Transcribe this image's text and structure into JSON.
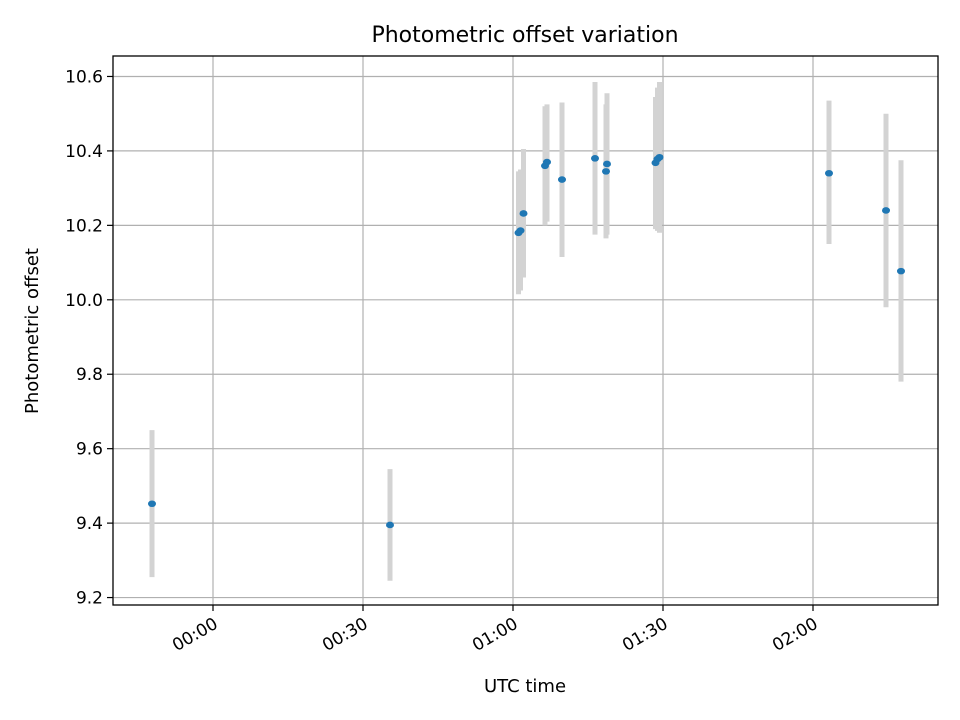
{
  "chart_data": {
    "type": "scatter",
    "title": "Photometric offset variation",
    "xlabel": "UTC time",
    "ylabel": "Photometric offset",
    "x_unit": "time (HH:MM)",
    "xlim": [
      "23:40",
      "02:25"
    ],
    "ylim": [
      9.18,
      10.655
    ],
    "x_ticks": [
      "00:00",
      "00:30",
      "01:00",
      "01:30",
      "02:00"
    ],
    "y_ticks": [
      "9.2",
      "9.4",
      "9.6",
      "9.8",
      "10.0",
      "10.2",
      "10.4",
      "10.6"
    ],
    "grid": true,
    "legend": "none",
    "colors": {
      "point": "#1f77b4",
      "errorbar": "#d3d3d3",
      "grid": "#b0b0b0"
    },
    "points": [
      {
        "x": "23:47.8",
        "y": 9.452,
        "ylow": 9.255,
        "yhigh": 9.65
      },
      {
        "x": "00:35.4",
        "y": 9.395,
        "ylow": 9.245,
        "yhigh": 9.545
      },
      {
        "x": "01:01.1",
        "y": 10.18,
        "ylow": 10.015,
        "yhigh": 10.345
      },
      {
        "x": "01:01.5",
        "y": 10.186,
        "ylow": 10.025,
        "yhigh": 10.35
      },
      {
        "x": "01:02.1",
        "y": 10.232,
        "ylow": 10.06,
        "yhigh": 10.405
      },
      {
        "x": "01:06.4",
        "y": 10.36,
        "ylow": 10.2,
        "yhigh": 10.52
      },
      {
        "x": "01:06.8",
        "y": 10.37,
        "ylow": 10.21,
        "yhigh": 10.525
      },
      {
        "x": "01:09.8",
        "y": 10.323,
        "ylow": 10.115,
        "yhigh": 10.53
      },
      {
        "x": "01:16.4",
        "y": 10.38,
        "ylow": 10.175,
        "yhigh": 10.585
      },
      {
        "x": "01:18.6",
        "y": 10.345,
        "ylow": 10.165,
        "yhigh": 10.525
      },
      {
        "x": "01:18.8",
        "y": 10.365,
        "ylow": 10.175,
        "yhigh": 10.555
      },
      {
        "x": "01:28.5",
        "y": 10.368,
        "ylow": 10.19,
        "yhigh": 10.545
      },
      {
        "x": "01:28.9",
        "y": 10.378,
        "ylow": 10.185,
        "yhigh": 10.57
      },
      {
        "x": "01:29.3",
        "y": 10.383,
        "ylow": 10.18,
        "yhigh": 10.585
      },
      {
        "x": "02:03.2",
        "y": 10.34,
        "ylow": 10.15,
        "yhigh": 10.535
      },
      {
        "x": "02:14.6",
        "y": 10.24,
        "ylow": 9.98,
        "yhigh": 10.5
      },
      {
        "x": "02:17.6",
        "y": 10.077,
        "ylow": 9.78,
        "yhigh": 10.375
      }
    ]
  }
}
